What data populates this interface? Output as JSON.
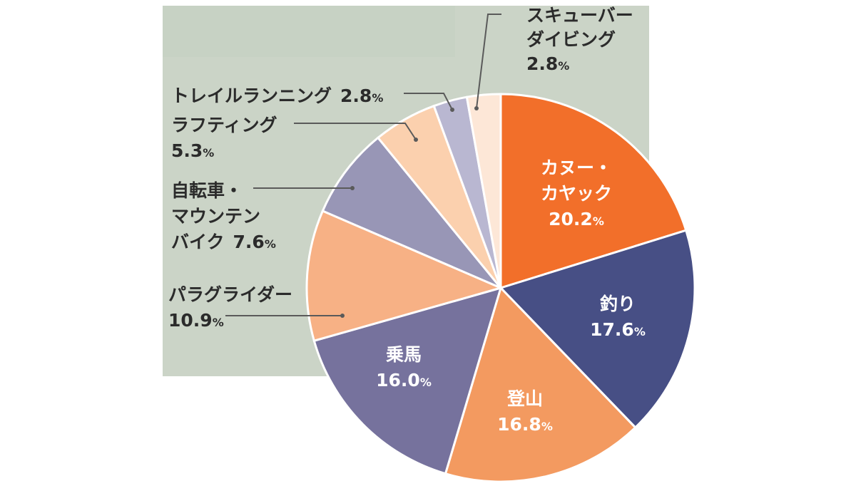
{
  "chart_data": {
    "type": "pie",
    "title": "",
    "start_angle_deg": 0,
    "direction": "clockwise",
    "slices": [
      {
        "label_lines": [
          "カヌー・",
          "カヤック"
        ],
        "value": 20.2,
        "unit": "%",
        "color": "#f26f2a"
      },
      {
        "label_lines": [
          "釣り"
        ],
        "value": 17.6,
        "unit": "%",
        "color": "#474f85"
      },
      {
        "label_lines": [
          "登山"
        ],
        "value": 16.8,
        "unit": "%",
        "color": "#f39a60"
      },
      {
        "label_lines": [
          "乗馬"
        ],
        "value": 16.0,
        "unit": "%",
        "color": "#76729d"
      },
      {
        "label_lines": [
          "パラグライダー"
        ],
        "value": 10.9,
        "unit": "%",
        "color": "#f7b185"
      },
      {
        "label_lines": [
          "自転車・",
          "マウンテン",
          "バイク"
        ],
        "value": 7.6,
        "unit": "%",
        "color": "#9896b6"
      },
      {
        "label_lines": [
          "ラフティング"
        ],
        "value": 5.3,
        "unit": "%",
        "color": "#fbd0ae"
      },
      {
        "label_lines": [
          "トレイルランニング"
        ],
        "value": 2.8,
        "unit": "%",
        "color": "#b9b7d1"
      },
      {
        "label_lines": [
          "スキューバー",
          "ダイビング"
        ],
        "value": 2.8,
        "unit": "%",
        "color": "#fde7d7"
      }
    ]
  },
  "colors": {
    "panel": "#cbd4c7",
    "panel_edge": "#e3e9df",
    "leader": "#5a5a5a"
  }
}
